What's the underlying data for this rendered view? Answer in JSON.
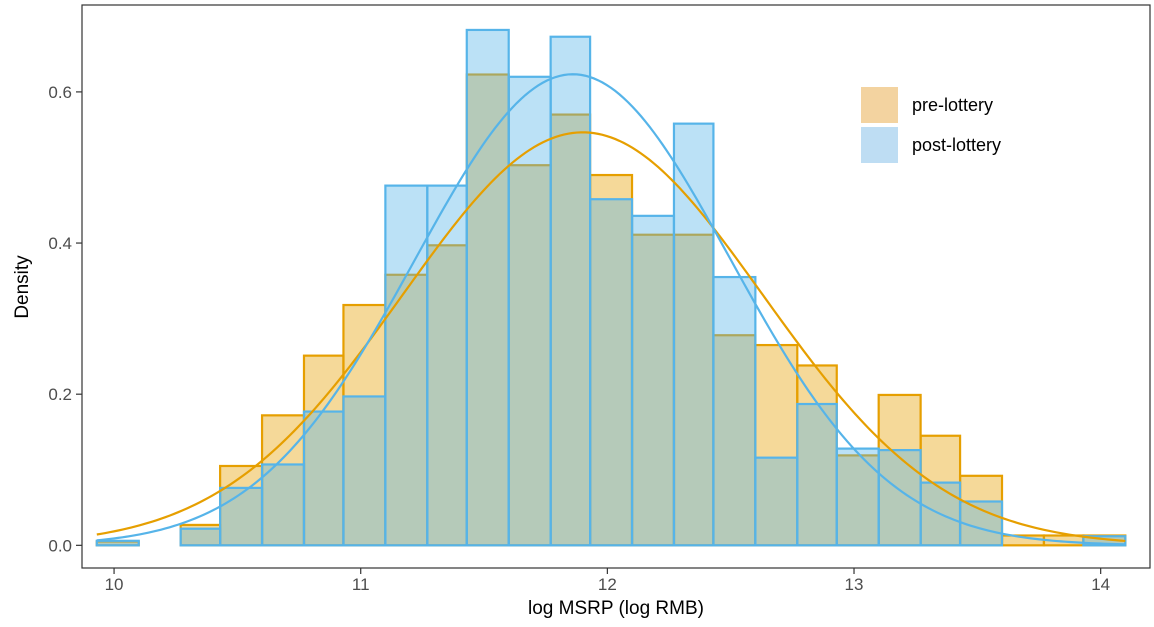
{
  "chart_data": {
    "type": "bar",
    "subtype": "overlaid histogram with normal density curves",
    "xlabel": "log MSRP (log RMB)",
    "ylabel": "Density",
    "xlim": [
      9.87,
      14.2
    ],
    "ylim": [
      -0.03,
      0.715
    ],
    "x_ticks": [
      10,
      11,
      12,
      13,
      14
    ],
    "x_tick_labels": [
      "10",
      "11",
      "12",
      "13",
      "14"
    ],
    "y_ticks": [
      0.0,
      0.2,
      0.4,
      0.6
    ],
    "y_tick_labels": [
      "0.0",
      "0.2",
      "0.4",
      "0.6"
    ],
    "grid": false,
    "legend_position": "top-right",
    "bin_edges": [
      9.93,
      10.1,
      10.27,
      10.43,
      10.6,
      10.77,
      10.93,
      11.1,
      11.27,
      11.43,
      11.6,
      11.77,
      11.93,
      12.1,
      12.27,
      12.43,
      12.6,
      12.77,
      12.93,
      13.1,
      13.27,
      13.43,
      13.6,
      13.77,
      13.93,
      14.1
    ],
    "series": [
      {
        "name": "pre-lottery",
        "color": "#E69F00",
        "fill_color": "#F3D3A0",
        "values": [
          0.005,
          0.0,
          0.027,
          0.105,
          0.172,
          0.251,
          0.318,
          0.358,
          0.397,
          0.623,
          0.503,
          0.57,
          0.49,
          0.411,
          0.411,
          0.278,
          0.265,
          0.238,
          0.119,
          0.199,
          0.145,
          0.092,
          0.013,
          0.013,
          0.013
        ],
        "curve": {
          "mean": 11.9,
          "sd": 0.73
        }
      },
      {
        "name": "post-lottery",
        "color": "#56B4E9",
        "fill_color": "#BEDDF3",
        "values": [
          0.006,
          0.0,
          0.022,
          0.076,
          0.107,
          0.177,
          0.197,
          0.476,
          0.476,
          0.682,
          0.62,
          0.673,
          0.458,
          0.436,
          0.558,
          0.355,
          0.116,
          0.187,
          0.128,
          0.126,
          0.083,
          0.058,
          0.0,
          0.0,
          0.012
        ],
        "curve": {
          "mean": 11.86,
          "sd": 0.64
        }
      }
    ]
  }
}
